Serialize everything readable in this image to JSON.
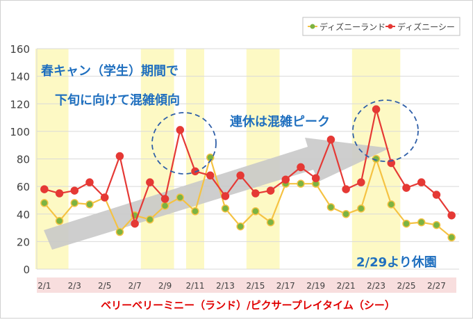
{
  "chart_data": {
    "type": "line",
    "title": "",
    "xlabel": "ベリーベリーミニー（ランド）/ピクサープレイタイム（シー）",
    "ylabel": "",
    "ylim": [
      0,
      160
    ],
    "yticks": [
      "0",
      "20",
      "40",
      "60",
      "80",
      "100",
      "120",
      "140",
      "160"
    ],
    "x": [
      "2/1",
      "2/2",
      "2/3",
      "2/4",
      "2/5",
      "2/6",
      "2/7",
      "2/8",
      "2/9",
      "2/10",
      "2/11",
      "2/12",
      "2/13",
      "2/14",
      "2/15",
      "2/16",
      "2/17",
      "2/18",
      "2/19",
      "2/20",
      "2/21",
      "2/22",
      "2/23",
      "2/24",
      "2/25",
      "2/26",
      "2/27",
      "2/28"
    ],
    "xtick_labels": [
      "2/1",
      "2/3",
      "2/5",
      "2/7",
      "2/9",
      "2/11",
      "2/13",
      "2/15",
      "2/17",
      "2/19",
      "2/21",
      "2/23",
      "2/25",
      "2/27"
    ],
    "legend_position": "top-right",
    "series": [
      {
        "name": "ディズニーランド",
        "line_color": "#f5c242",
        "marker_color": "#7cb342",
        "values": [
          48,
          35,
          48,
          47,
          52,
          27,
          39,
          36,
          46,
          52,
          42,
          81,
          44,
          31,
          42,
          34,
          62,
          62,
          62,
          45,
          40,
          44,
          80,
          47,
          33,
          34,
          32,
          23
        ]
      },
      {
        "name": "ディズニーシー",
        "line_color": "#e53935",
        "marker_color": "#e53935",
        "values": [
          58,
          55,
          57,
          63,
          52,
          82,
          33,
          63,
          51,
          101,
          71,
          68,
          53,
          68,
          55,
          57,
          65,
          74,
          66,
          94,
          58,
          63,
          116,
          77,
          59,
          63,
          54,
          39
        ]
      }
    ],
    "highlight_bands": [
      {
        "from": "2/1",
        "to": "2/2"
      },
      {
        "from": "2/8",
        "to": "2/9"
      },
      {
        "from": "2/11",
        "to": "2/11"
      },
      {
        "from": "2/15",
        "to": "2/16"
      },
      {
        "from": "2/22",
        "to": "2/24"
      }
    ],
    "annotations": [
      {
        "text": "春キャン（学生）期間で"
      },
      {
        "text": "下旬に向けて混雑傾向"
      },
      {
        "text": "連休は混雑ピーク"
      },
      {
        "text": "2/29より休園"
      }
    ]
  },
  "colors": {
    "band": "#fdf9c4",
    "annotation_text": "#1f6fbf",
    "circle": "#2f5fa8",
    "arrow": "#c9c9c9",
    "xaxis_strip": "#f8dede",
    "xaxis_label": "#e00000"
  }
}
